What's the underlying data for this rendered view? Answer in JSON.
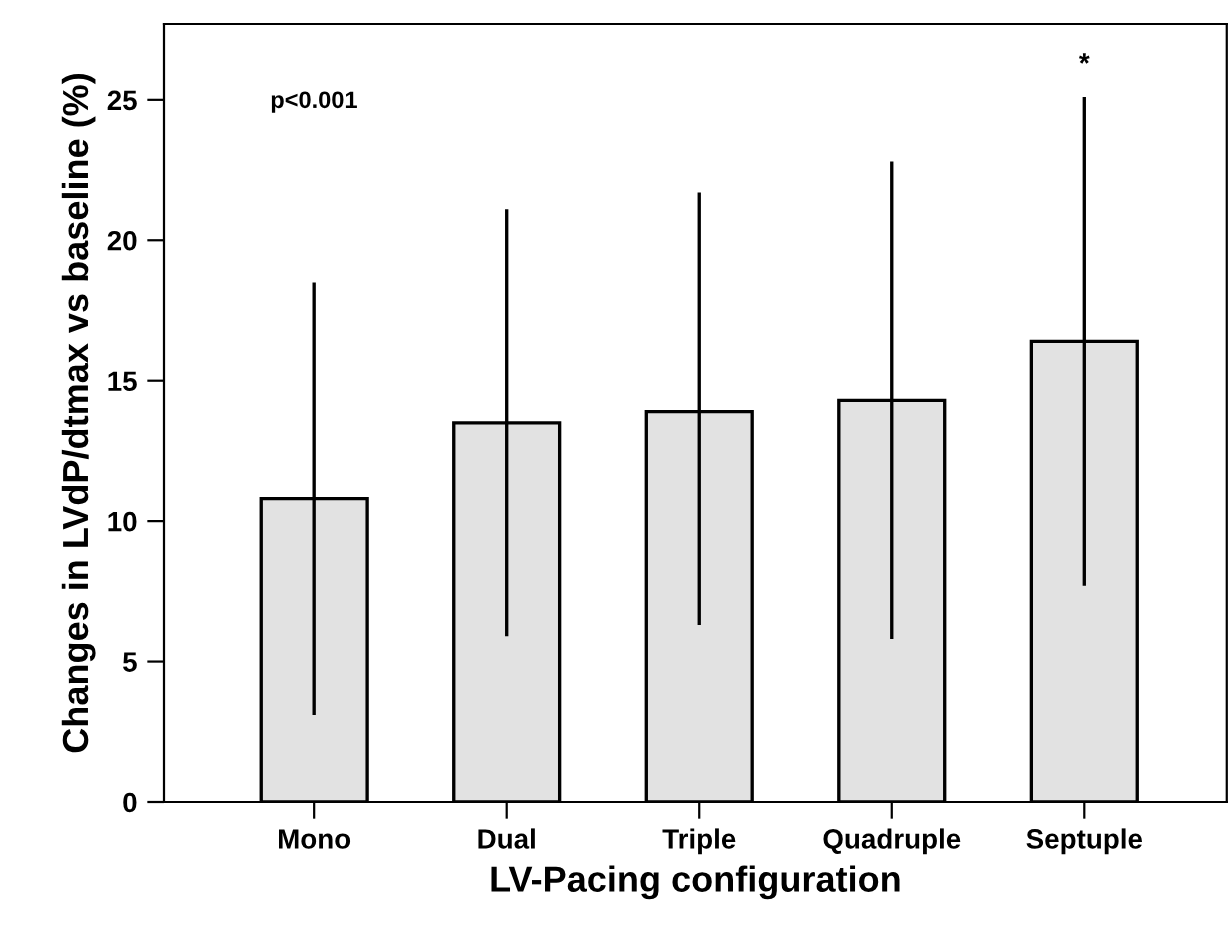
{
  "chart_data": {
    "type": "bar",
    "xlabel": "LV-Pacing configuration",
    "ylabel": "Changes in LVdP/dtmax vs baseline (%)",
    "categories": [
      "Mono",
      "Dual",
      "Triple",
      "Quadruple",
      "Septuple"
    ],
    "values": [
      10.8,
      13.5,
      13.9,
      14.3,
      16.4
    ],
    "errors": [
      [
        3.1,
        18.5
      ],
      [
        5.9,
        21.1
      ],
      [
        6.3,
        21.7
      ],
      [
        5.8,
        22.8
      ],
      [
        7.7,
        25.1
      ]
    ],
    "color": "#e2e2e2",
    "ylim": [
      0,
      27.7
    ],
    "yticks": [
      0,
      5,
      10,
      15,
      20,
      25
    ],
    "grid": false,
    "annotations": [
      "p<0.001",
      "*"
    ]
  }
}
